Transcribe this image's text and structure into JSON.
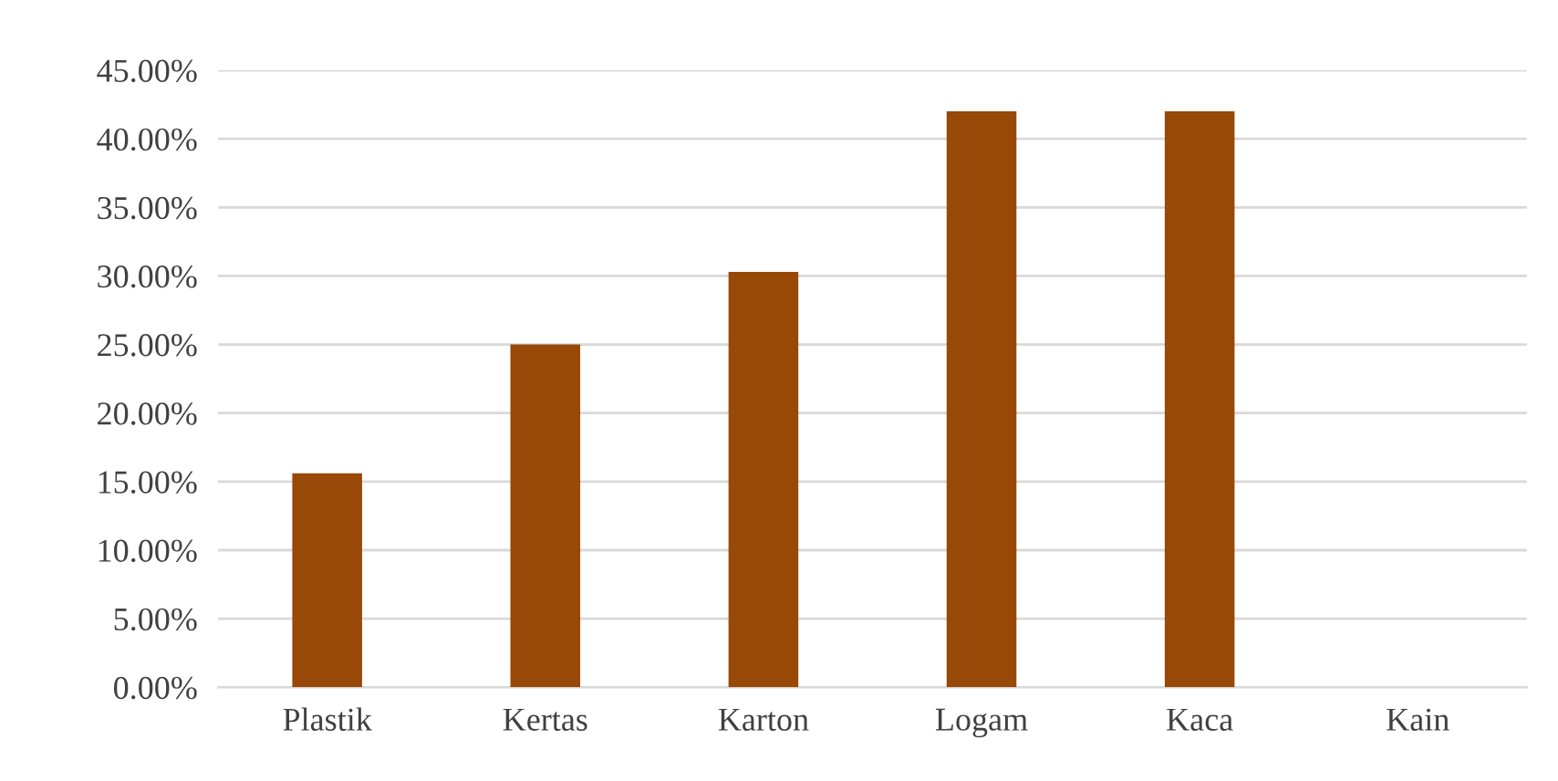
{
  "chart_data": {
    "type": "bar",
    "categories": [
      "Plastik",
      "Kertas",
      "Karton",
      "Logam",
      "Kaca",
      "Kain"
    ],
    "values": [
      15.6,
      25.0,
      30.3,
      42.0,
      42.0,
      0
    ],
    "color": "#984807",
    "ylim": [
      0,
      45
    ],
    "yticks": [
      {
        "value": 0,
        "label": "0.00%"
      },
      {
        "value": 5,
        "label": "5.00%"
      },
      {
        "value": 10,
        "label": "10.00%"
      },
      {
        "value": 15,
        "label": "15.00%"
      },
      {
        "value": 20,
        "label": "20.00%"
      },
      {
        "value": 25,
        "label": "25.00%"
      },
      {
        "value": 30,
        "label": "30.00%"
      },
      {
        "value": 35,
        "label": "35.00%"
      },
      {
        "value": 40,
        "label": "40.00%"
      },
      {
        "value": 45,
        "label": "45.00%"
      }
    ],
    "grid": "y"
  }
}
